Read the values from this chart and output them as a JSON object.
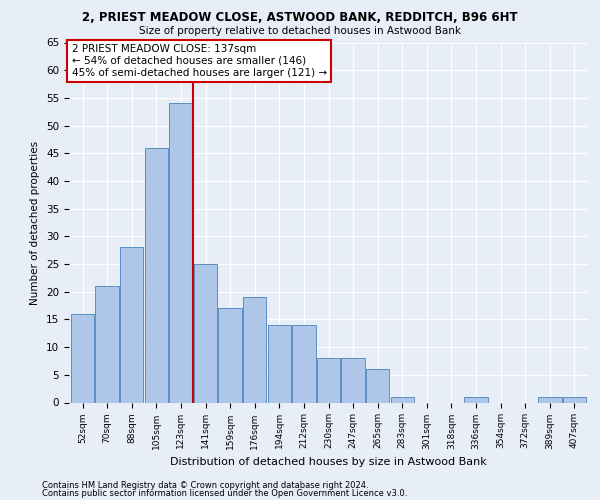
{
  "title1": "2, PRIEST MEADOW CLOSE, ASTWOOD BANK, REDDITCH, B96 6HT",
  "title2": "Size of property relative to detached houses in Astwood Bank",
  "xlabel": "Distribution of detached houses by size in Astwood Bank",
  "ylabel": "Number of detached properties",
  "footnote1": "Contains HM Land Registry data © Crown copyright and database right 2024.",
  "footnote2": "Contains public sector information licensed under the Open Government Licence v3.0.",
  "bar_labels": [
    "52sqm",
    "70sqm",
    "88sqm",
    "105sqm",
    "123sqm",
    "141sqm",
    "159sqm",
    "176sqm",
    "194sqm",
    "212sqm",
    "230sqm",
    "247sqm",
    "265sqm",
    "283sqm",
    "301sqm",
    "318sqm",
    "336sqm",
    "354sqm",
    "372sqm",
    "389sqm",
    "407sqm"
  ],
  "bar_values": [
    16,
    21,
    28,
    46,
    54,
    25,
    17,
    19,
    14,
    14,
    8,
    8,
    6,
    1,
    0,
    0,
    1,
    0,
    0,
    1,
    1
  ],
  "bar_color": "#aec6e8",
  "bar_edge_color": "#5a8fc0",
  "property_line_x": 4.5,
  "property_line_color": "#cc0000",
  "annotation_text": "2 PRIEST MEADOW CLOSE: 137sqm\n← 54% of detached houses are smaller (146)\n45% of semi-detached houses are larger (121) →",
  "annotation_box_color": "#ffffff",
  "annotation_box_edge": "#cc0000",
  "ylim": [
    0,
    65
  ],
  "yticks": [
    0,
    5,
    10,
    15,
    20,
    25,
    30,
    35,
    40,
    45,
    50,
    55,
    60,
    65
  ],
  "bg_color": "#e8eef8",
  "grid_color": "#ffffff"
}
